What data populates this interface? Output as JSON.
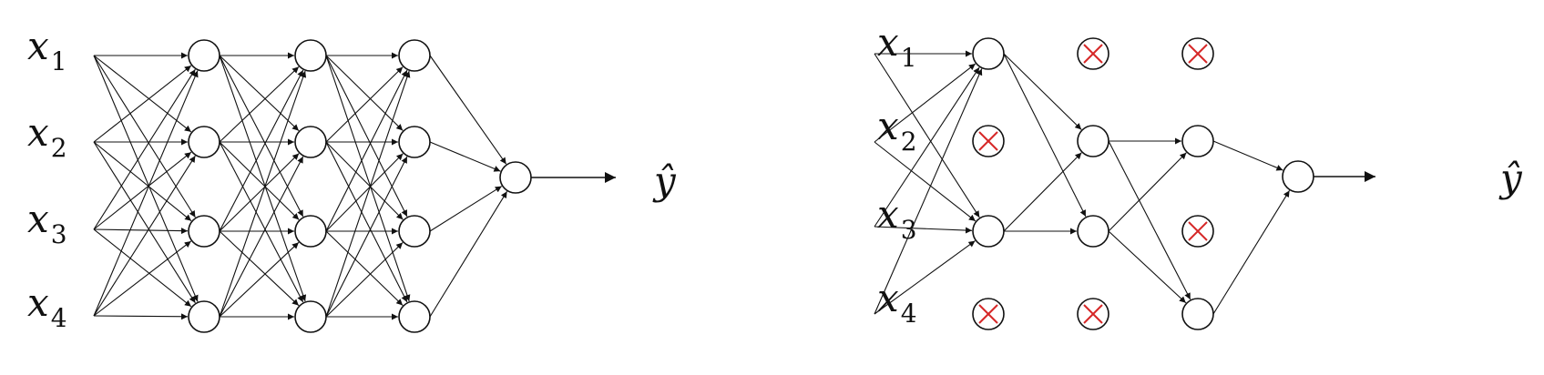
{
  "left_network": {
    "inputs": [
      {
        "base": "x",
        "sub": "1"
      },
      {
        "base": "x",
        "sub": "2"
      },
      {
        "base": "x",
        "sub": "3"
      },
      {
        "base": "x",
        "sub": "4"
      }
    ],
    "output_label": "ŷ"
  },
  "right_network": {
    "inputs": [
      {
        "base": "x",
        "sub": "1"
      },
      {
        "base": "x",
        "sub": "2"
      },
      {
        "base": "x",
        "sub": "3"
      },
      {
        "base": "x",
        "sub": "4"
      }
    ],
    "output_label": "ŷ",
    "dropped_units": {
      "layer1": [
        false,
        true,
        false,
        true
      ],
      "layer2": [
        true,
        false,
        false,
        true
      ],
      "layer3": [
        true,
        false,
        true,
        false
      ]
    }
  },
  "colors": {
    "line": "#111111",
    "drop_mark": "#d62828",
    "node_fill": "#ffffff"
  }
}
